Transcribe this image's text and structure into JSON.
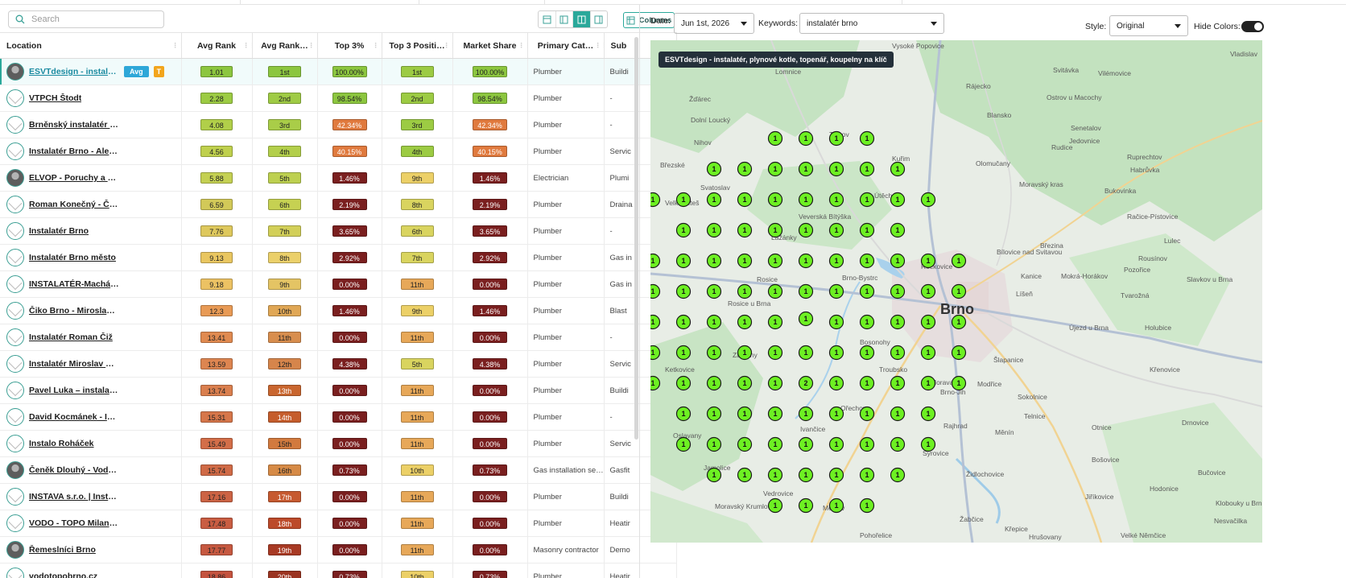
{
  "search": {
    "placeholder": "Search"
  },
  "toolbar": {
    "columns_label": "Columns",
    "view_icons": [
      "layout-left-icon",
      "layout-split-left-icon",
      "layout-center-icon",
      "layout-right-icon"
    ]
  },
  "table": {
    "headers": [
      "Location",
      "Avg Rank",
      "Avg Rank…",
      "Top 3%",
      "Top 3 Positi…",
      "Market Share",
      "Primary Cat…",
      "Sub"
    ],
    "selected_tags": {
      "avg": "Avg",
      "t": "T"
    },
    "rows": [
      {
        "name": "ESVTdesign - instalatér…",
        "avatar": "photo",
        "avg_rank": "1.01",
        "avg_rank_pos": "1st",
        "top3": "100.00%",
        "top3_pos": "1st",
        "market_share": "100.00%",
        "category": "Plumber",
        "sub": "Buildi",
        "selected": true
      },
      {
        "name": "VTPCH Štodt",
        "avatar": "blank",
        "avg_rank": "2.28",
        "avg_rank_pos": "2nd",
        "top3": "98.54%",
        "top3_pos": "2nd",
        "market_share": "98.54%",
        "category": "Plumber",
        "sub": "-"
      },
      {
        "name": "Brněnský instalatér Do…",
        "avatar": "blank",
        "avg_rank": "4.08",
        "avg_rank_pos": "3rd",
        "top3": "42.34%",
        "top3_pos": "3rd",
        "market_share": "42.34%",
        "category": "Plumber",
        "sub": "-"
      },
      {
        "name": "Instalatér Brno - Aleš…",
        "avatar": "blank",
        "avg_rank": "4.56",
        "avg_rank_pos": "4th",
        "top3": "40.15%",
        "top3_pos": "4th",
        "market_share": "40.15%",
        "category": "Plumber",
        "sub": "Servic"
      },
      {
        "name": "ELVOP - Poruchy a mo…",
        "avatar": "photo",
        "avg_rank": "5.88",
        "avg_rank_pos": "5th",
        "top3": "1.46%",
        "top3_pos": "9th",
        "market_share": "1.46%",
        "category": "Electrician",
        "sub": "Plumi"
      },
      {
        "name": "Roman Konečný - ČIST…",
        "avatar": "blank",
        "avg_rank": "6.59",
        "avg_rank_pos": "6th",
        "top3": "2.19%",
        "top3_pos": "8th",
        "market_share": "2.19%",
        "category": "Plumber",
        "sub": "Draina"
      },
      {
        "name": "Instalatér Brno",
        "avatar": "blank",
        "avg_rank": "7.76",
        "avg_rank_pos": "7th",
        "top3": "3.65%",
        "top3_pos": "6th",
        "market_share": "3.65%",
        "category": "Plumber",
        "sub": "-"
      },
      {
        "name": "Instalatér Brno město",
        "avatar": "blank",
        "avg_rank": "9.13",
        "avg_rank_pos": "8th",
        "top3": "2.92%",
        "top3_pos": "7th",
        "market_share": "2.92%",
        "category": "Plumber",
        "sub": "Gas in"
      },
      {
        "name": "INSTALATÉR-Machát P…",
        "avatar": "blank",
        "avg_rank": "9.18",
        "avg_rank_pos": "9th",
        "top3": "0.00%",
        "top3_pos": "11th",
        "market_share": "0.00%",
        "category": "Plumber",
        "sub": "Gas in"
      },
      {
        "name": "Čiko Brno - Miroslav H…",
        "avatar": "blank",
        "avg_rank": "12.3",
        "avg_rank_pos": "10th",
        "top3": "1.46%",
        "top3_pos": "9th",
        "market_share": "1.46%",
        "category": "Plumber",
        "sub": "Blast"
      },
      {
        "name": "Instalatér Roman Čiž",
        "avatar": "blank",
        "avg_rank": "13.41",
        "avg_rank_pos": "11th",
        "top3": "0.00%",
        "top3_pos": "11th",
        "market_share": "0.00%",
        "category": "Plumber",
        "sub": "-"
      },
      {
        "name": "Instalatér Miroslav Da…",
        "avatar": "blank",
        "avg_rank": "13.59",
        "avg_rank_pos": "12th",
        "top3": "4.38%",
        "top3_pos": "5th",
        "market_share": "4.38%",
        "category": "Plumber",
        "sub": "Servic"
      },
      {
        "name": "Pavel Luka – instalatér,…",
        "avatar": "blank",
        "avg_rank": "13.74",
        "avg_rank_pos": "13th",
        "top3": "0.00%",
        "top3_pos": "11th",
        "market_share": "0.00%",
        "category": "Plumber",
        "sub": "Buildi"
      },
      {
        "name": "David Kocmánek - Inst…",
        "avatar": "blank",
        "avg_rank": "15.31",
        "avg_rank_pos": "14th",
        "top3": "0.00%",
        "top3_pos": "11th",
        "market_share": "0.00%",
        "category": "Plumber",
        "sub": "-"
      },
      {
        "name": "Instalo Roháček",
        "avatar": "blank",
        "avg_rank": "15.49",
        "avg_rank_pos": "15th",
        "top3": "0.00%",
        "top3_pos": "11th",
        "market_share": "0.00%",
        "category": "Plumber",
        "sub": "Servic"
      },
      {
        "name": "Čeněk Dlouhý - Voda T…",
        "avatar": "photo",
        "avg_rank": "15.74",
        "avg_rank_pos": "16th",
        "top3": "0.73%",
        "top3_pos": "10th",
        "market_share": "0.73%",
        "category": "Gas installation se…",
        "sub": "Gasfit"
      },
      {
        "name": "INSTAVA s.r.o. | Instalat…",
        "avatar": "blank",
        "avg_rank": "17.16",
        "avg_rank_pos": "17th",
        "top3": "0.00%",
        "top3_pos": "11th",
        "market_share": "0.00%",
        "category": "Plumber",
        "sub": "Buildi"
      },
      {
        "name": "VODO - TOPO Milan Pi…",
        "avatar": "blank",
        "avg_rank": "17.48",
        "avg_rank_pos": "18th",
        "top3": "0.00%",
        "top3_pos": "11th",
        "market_share": "0.00%",
        "category": "Plumber",
        "sub": "Heatir"
      },
      {
        "name": "Řemeslníci Brno",
        "avatar": "photo",
        "avg_rank": "17.77",
        "avg_rank_pos": "19th",
        "top3": "0.00%",
        "top3_pos": "11th",
        "market_share": "0.00%",
        "category": "Masonry contractor",
        "sub": "Demo"
      },
      {
        "name": "vodotopobrno.cz",
        "avatar": "blank",
        "avg_rank": "18.86",
        "avg_rank_pos": "20th",
        "top3": "0.73%",
        "top3_pos": "10th",
        "market_share": "0.73%",
        "category": "Plumber",
        "sub": "Heatir"
      }
    ]
  },
  "controls": {
    "date_label": "Date:",
    "date_value": "Jun 1st, 2026",
    "keywords_label": "Keywords:",
    "keywords_value": "instalatér brno",
    "style_label": "Style:",
    "style_value": "Original",
    "hide_colors_label": "Hide Colors:"
  },
  "map": {
    "tooltip": "ESVTdesign - instalatér, plynové kotle, topenář, koupelny na klíč",
    "city_label": "Brno",
    "place_labels": [
      "Lomnice",
      "Rájecko",
      "Ostrov u Macochy",
      "Blansko",
      "Senetalov",
      "Žďárec",
      "Dolní Loucký",
      "Tišnov",
      "Rudice",
      "Jedovnice",
      "Nihov",
      "Březské",
      "Olomučany",
      "Ruprechtov",
      "Svatoslav",
      "Lažánky",
      "Veverská Bítýška",
      "Březina",
      "Bukovinka",
      "Račice-Pístovice",
      "Velká Bíteš",
      "Moravský kras",
      "Lulec",
      "Rosice",
      "Řečkovice",
      "Bílovice nad Svitavou",
      "Kanice",
      "Pozořice",
      "Rousínov",
      "Bosonohy",
      "Brno-Bystrc",
      "Líšeň",
      "Mokrá-Horákov",
      "Tvarožná",
      "Holubice",
      "Zakřany",
      "Troubsko",
      "Šlapanice",
      "Ketkovice",
      "Moravany",
      "Sokolnice",
      "Křenovice",
      "Oslavany",
      "Ořechov",
      "Telnice",
      "Ivančice",
      "Rajhrad",
      "Měnín",
      "Otnice",
      "Jamolice",
      "Syrovice",
      "Židlochovice",
      "Bošovice",
      "Moravský Krumlov",
      "Medlov",
      "Žabčice",
      "Křepice",
      "Bučovice",
      "Vedrovice",
      "Pohořelice",
      "Hrušovany",
      "Velké Němčice",
      "Klobouky u Brna",
      "Vladislav",
      "Vysoké Popovice",
      "Slavkov u Brna",
      "Újezd u Brna",
      "Modřice",
      "Brno-Jih",
      "Vranov",
      "Kuřim",
      "Rosice u Brna",
      "Svitávka",
      "Útěchov",
      "Vilémovice",
      "Habrůvka",
      "Nesvačilka",
      "Hodonice",
      "Jiříkovice",
      "Drnovice"
    ],
    "pin_rank": "1",
    "pin_rank_alt": "2"
  }
}
